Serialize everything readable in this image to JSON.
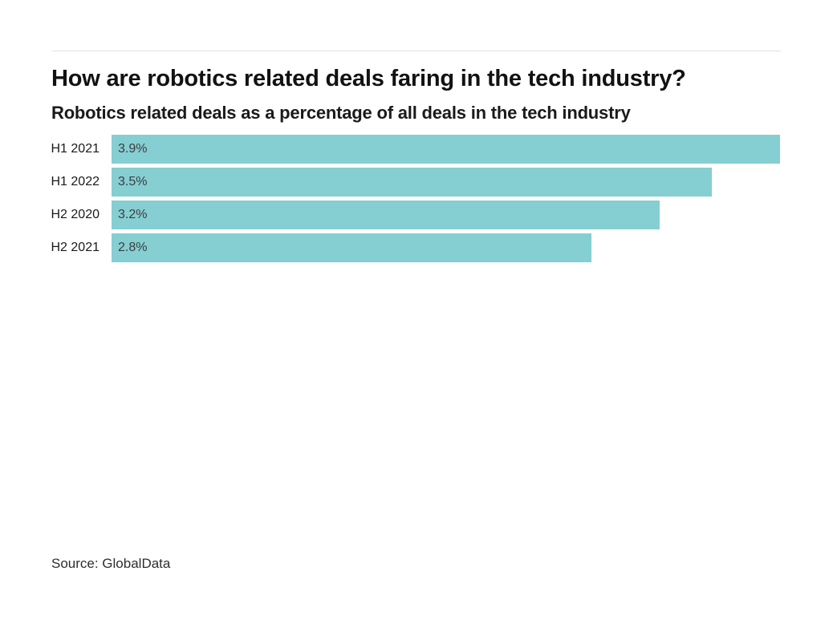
{
  "header": {
    "title": "How are robotics related deals faring in the tech industry?",
    "subtitle": "Robotics related deals as a percentage of all deals in the tech industry"
  },
  "chart_data": {
    "type": "bar",
    "orientation": "horizontal",
    "title": "How are robotics related deals faring in the tech industry?",
    "subtitle": "Robotics related deals as a percentage of all deals in the tech industry",
    "categories": [
      "H1 2021",
      "H1 2022",
      "H2 2020",
      "H2 2021"
    ],
    "values": [
      3.9,
      3.5,
      3.2,
      2.8
    ],
    "value_labels": [
      "3.9%",
      "3.5%",
      "3.2%",
      "2.8%"
    ],
    "xlabel": "",
    "ylabel": "",
    "xlim": [
      0,
      3.9
    ],
    "grid": false,
    "legend": false,
    "bar_color": "#85CED2",
    "value_label_position": "inside-left"
  },
  "footer": {
    "source": "Source: GlobalData"
  },
  "colors": {
    "bar": "#85CED2",
    "rule": "#e0e0e0",
    "title_text": "#121212",
    "value_text": "#3d3d3d"
  }
}
